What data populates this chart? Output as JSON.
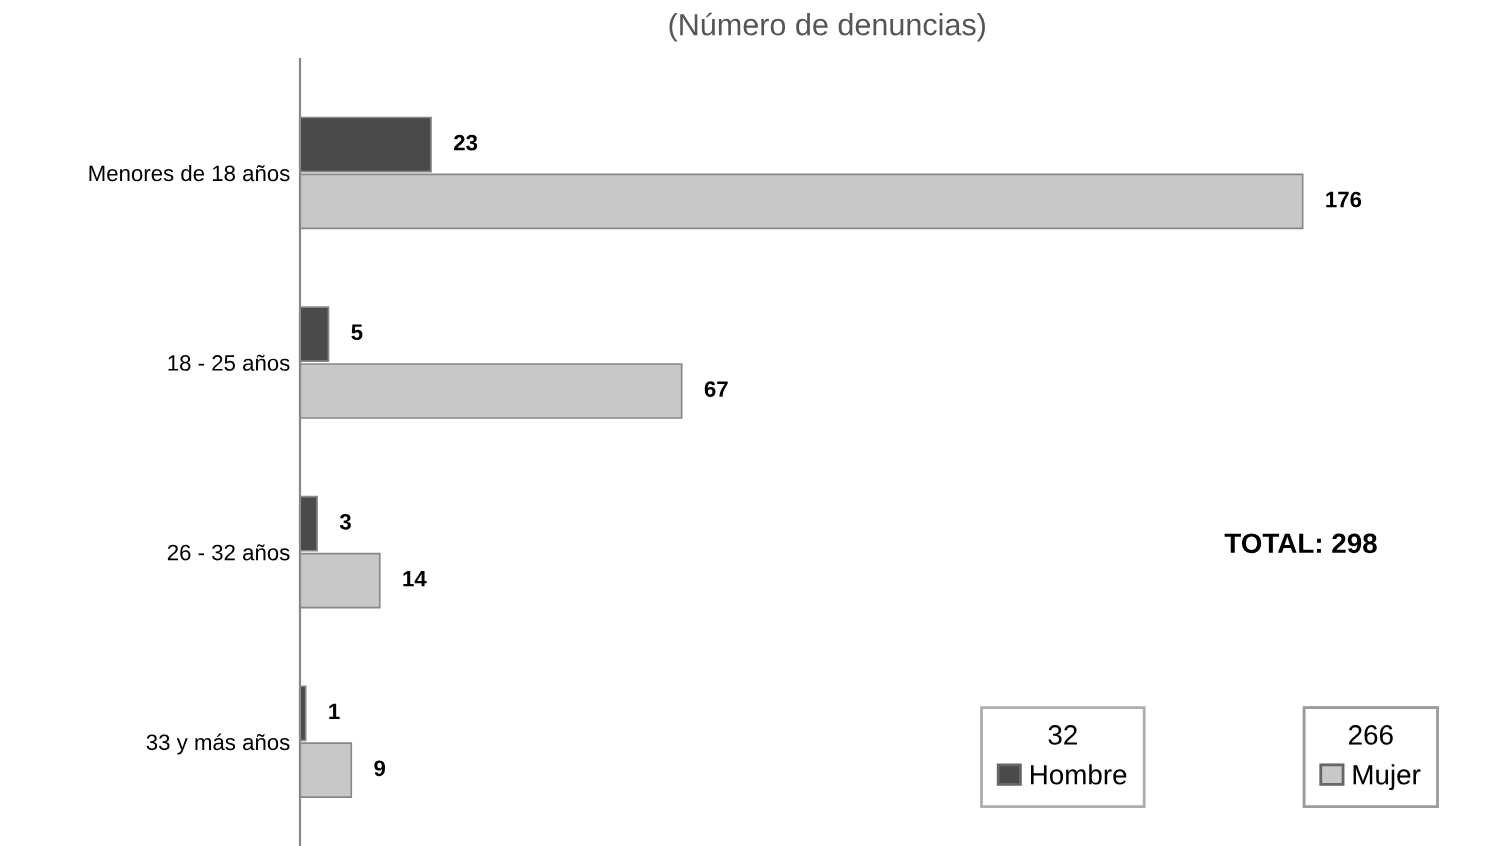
{
  "chart_data": {
    "type": "bar",
    "orientation": "horizontal",
    "subtitle": "(Número de denuncias)",
    "categories": [
      "Menores de 18 años",
      "18 - 25 años",
      "26 - 32 años",
      "33 y más años"
    ],
    "series": [
      {
        "name": "Hombre",
        "color": "#4a4a4a",
        "values": [
          23,
          5,
          3,
          1
        ]
      },
      {
        "name": "Mujer",
        "color": "#c8c8c8",
        "values": [
          176,
          67,
          14,
          9
        ]
      }
    ],
    "data_labels": true,
    "legend": "bottom right",
    "grid": false,
    "annotations": [
      "TOTAL: 298",
      "32",
      "266"
    ]
  }
}
